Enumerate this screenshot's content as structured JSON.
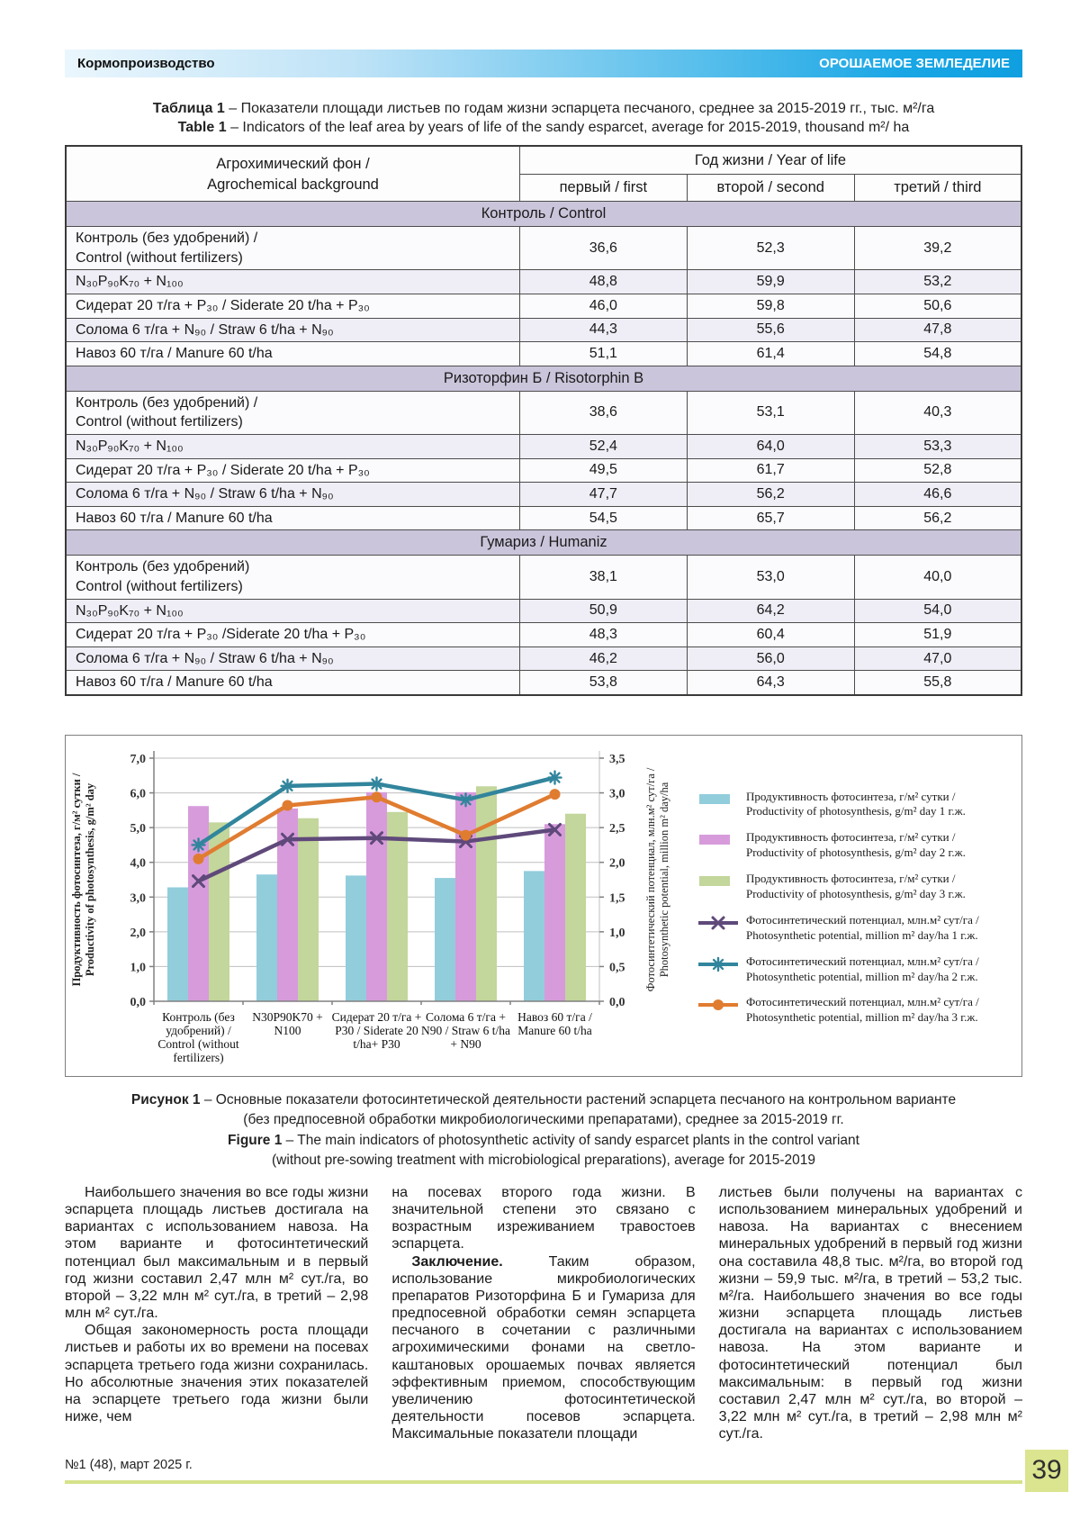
{
  "header": {
    "left": "Кормопроизводство",
    "right": "ОРОШАЕМОЕ ЗЕМЛЕДЕЛИЕ"
  },
  "table_title": {
    "l1_bold": "Таблица 1",
    "l1_rest": " – Показатели площади листьев по годам жизни эспарцета песчаного, среднее за 2015-2019 гг., тыс. м²/га",
    "l2_bold": "Table 1",
    "l2_rest": " – Indicators of the leaf area by years of life of the sandy esparcet, average for 2015-2019, thousand m²/ ha"
  },
  "table": {
    "header": {
      "background": "Агрохимический фон /\nAgrochemical background",
      "year": "Год жизни / Year of life",
      "cols": [
        "первый / first",
        "второй / second",
        "третий / third"
      ]
    },
    "sections": [
      {
        "title": "Контроль / Control",
        "rows": [
          {
            "label": "Контроль (без удобрений) /\nControl (without fertilizers)",
            "values": [
              "36,6",
              "52,3",
              "39,2"
            ]
          },
          {
            "label": "N₃₀P₉₀K₇₀ + N₁₀₀",
            "values": [
              "48,8",
              "59,9",
              "53,2"
            ]
          },
          {
            "label": "Сидерат 20 т/га + P₃₀ / Siderate 20 t/ha + P₃₀",
            "values": [
              "46,0",
              "59,8",
              "50,6"
            ]
          },
          {
            "label": "Солома 6 т/га + N₉₀ / Straw 6 t/ha + N₉₀",
            "values": [
              "44,3",
              "55,6",
              "47,8"
            ]
          },
          {
            "label": "Навоз 60 т/га / Manure 60 t/ha",
            "values": [
              "51,1",
              "61,4",
              "54,8"
            ]
          }
        ]
      },
      {
        "title": "Ризоторфин Б / Risotorphin B",
        "rows": [
          {
            "label": "Контроль (без удобрений) /\nControl (without fertilizers)",
            "values": [
              "38,6",
              "53,1",
              "40,3"
            ]
          },
          {
            "label": "N₃₀P₉₀K₇₀ + N₁₀₀",
            "values": [
              "52,4",
              "64,0",
              "53,3"
            ]
          },
          {
            "label": "Сидерат 20 т/га + P₃₀ / Siderate 20 t/ha + P₃₀",
            "values": [
              "49,5",
              "61,7",
              "52,8"
            ]
          },
          {
            "label": "Солома 6 т/га + N₉₀ / Straw 6 t/ha + N₉₀",
            "values": [
              "47,7",
              "56,2",
              "46,6"
            ]
          },
          {
            "label": "Навоз 60 т/га / Manure 60 t/ha",
            "values": [
              "54,5",
              "65,7",
              "56,2"
            ]
          }
        ]
      },
      {
        "title": "Гумариз / Humaniz",
        "rows": [
          {
            "label": "Контроль (без удобрений)\nControl (without fertilizers)",
            "values": [
              "38,1",
              "53,0",
              "40,0"
            ]
          },
          {
            "label": "N₃₀P₉₀K₇₀ + N₁₀₀",
            "values": [
              "50,9",
              "64,2",
              "54,0"
            ]
          },
          {
            "label": "Сидерат 20 т/га + P₃₀ /Siderate 20 t/ha + P₃₀",
            "values": [
              "48,3",
              "60,4",
              "51,9"
            ]
          },
          {
            "label": "Солома 6 т/га + N₉₀ / Straw 6 t/ha + N₉₀",
            "values": [
              "46,2",
              "56,0",
              "47,0"
            ]
          },
          {
            "label": "Навоз 60 т/га / Manure 60 t/ha",
            "values": [
              "53,8",
              "64,3",
              "55,8"
            ]
          }
        ]
      }
    ]
  },
  "chart_data": {
    "type": "combo-bar-line",
    "title": "",
    "categories": [
      [
        "Контроль (без",
        "удобрений) /",
        "Control (without",
        "fertilizers)"
      ],
      [
        "N30P90K70 +",
        "N100"
      ],
      [
        "Сидерат 20 т/га +",
        "P30  / Siderate 20",
        "t/ha+ P30"
      ],
      [
        "Солома 6 т/га +",
        "N90 / Straw 6 t/ha",
        "+ N90"
      ],
      [
        "Навоз 60 т/га /",
        "Manure 60 t/ha"
      ]
    ],
    "left_axis": {
      "label_lines": [
        "Продуктивность фотосинтеза, г/м² сутки /",
        "Productivity of photosynthesis, g/m² day"
      ],
      "min": 0,
      "max": 7,
      "step": 1
    },
    "right_axis": {
      "label_lines": [
        "Фотосинтетический потенциал, млн.м² сут/га /",
        "Photosynthetic potential, million m² day/ha"
      ],
      "min": 0,
      "max": 3.5,
      "step": 0.5
    },
    "bar_series": [
      {
        "name": "Продуктивность фотосинтеза 1 г.ж.",
        "color": "#92CDDC",
        "axis": "left",
        "values": [
          3.28,
          3.65,
          3.62,
          3.55,
          3.75
        ]
      },
      {
        "name": "Продуктивность фотосинтеза 2 г.ж.",
        "color": "#D79BDB",
        "axis": "left",
        "values": [
          5.62,
          5.55,
          6.02,
          6.02,
          5.1
        ]
      },
      {
        "name": "Продуктивность фотосинтеза 3 г.ж.",
        "color": "#C3D69B",
        "axis": "left",
        "values": [
          5.15,
          5.27,
          5.45,
          6.19,
          5.4
        ]
      }
    ],
    "line_series": [
      {
        "name": "Фотосинтетический потенциал 1 г.ж.",
        "color": "#5F497A",
        "marker": "x",
        "axis": "right",
        "values": [
          1.73,
          2.33,
          2.35,
          2.3,
          2.47
        ]
      },
      {
        "name": "Фотосинтетический потенциал 2 г.ж.",
        "color": "#31859C",
        "marker": "star",
        "axis": "right",
        "values": [
          2.25,
          3.1,
          3.13,
          2.9,
          3.22
        ]
      },
      {
        "name": "Фотосинтетический потенциал 3 г.ж.",
        "color": "#E07C30",
        "marker": "circle",
        "axis": "right",
        "values": [
          2.05,
          2.82,
          2.94,
          2.39,
          2.98
        ]
      }
    ],
    "legend": [
      {
        "swatch": "bar",
        "color": "#92CDDC",
        "line1": "Продуктивность фотосинтеза, г/м²  сутки /",
        "line2": "Productivity of photosynthesis, g/m²  day 1 г.ж."
      },
      {
        "swatch": "bar",
        "color": "#D79BDB",
        "line1": "Продуктивность фотосинтеза, г/м²  сутки /",
        "line2": "Productivity of photosynthesis, g/m²  day 2 г.ж."
      },
      {
        "swatch": "bar",
        "color": "#C3D69B",
        "line1": "Продуктивность фотосинтеза, г/м²  сутки /",
        "line2": "Productivity of photosynthesis, g/m²  day 3 г.ж."
      },
      {
        "swatch": "line-x",
        "color": "#5F497A",
        "line1": "Фотосинтетический потенциал, млн.м²  сут/га /",
        "line2": "Photosynthetic potential, million m²  day/ha 1 г.ж."
      },
      {
        "swatch": "line-star",
        "color": "#31859C",
        "line1": "Фотосинтетический потенциал, млн.м²  сут/га /",
        "line2": "Photosynthetic potential, million m²  day/ha 2 г.ж."
      },
      {
        "swatch": "line-circle",
        "color": "#E07C30",
        "line1": "Фотосинтетический потенциал, млн.м²  сут/га /",
        "line2": "Photosynthetic potential, million m²  day/ha 3 г.ж."
      }
    ]
  },
  "figure_caption": {
    "l1_bold": "Рисунок 1",
    "l1_rest": " – Основные показатели фотосинтетической деятельности растений эспарцета песчаного на контрольном варианте",
    "l2": "(без предпосевной обработки микробиологическими препаратами), среднее за 2015-2019 гг.",
    "l3_bold": "Figure 1",
    "l3_rest": " – The main indicators of photosynthetic activity of sandy esparcet plants in the control variant",
    "l4": "(without pre-sowing treatment with microbiological preparations), average for 2015-2019"
  },
  "columns": {
    "col1": {
      "p1": "Наибольшего значения во все годы жизни эспарцета площадь листьев достигала на вариантах с использованием навоза. На этом варианте и фотосинтетический потенциал был максимальным и в первый год жизни составил 2,47 млн м² сут./га, во второй – 3,22 млн м² сут./га, в третий – 2,98 млн м² сут./га.",
      "p2": "Общая закономерность роста площади листьев и работы их во времени на посевах эспарцета третьего года жизни сохранилась. Но абсолютные значения этих показателей на эспарцете третьего года жизни были ниже, чем"
    },
    "col2": {
      "p1": "на посевах второго года жизни. В значительной степени это связано с возрастным изреживанием травостоев эспарцета.",
      "p2_lead": "Заключение.",
      "p2": " Таким образом, использование микробиологических препаратов Ризоторфина Б и Гумариза для предпосевной обработки семян эспарцета песчаного в сочетании с различными агрохимическими фонами на светло-каштановых орошаемых почвах является эффективным приемом, способствующим увеличению фотосинтетической деятельности посевов эспарцета. Максимальные показатели площади"
    },
    "col3": {
      "p1": "листьев были получены на вариантах с использованием минеральных удобрений и навоза. На вариантах с внесением минеральных удобрений в первый год жизни она составила 48,8 тыс. м²/га, во второй год жизни – 59,9 тыс. м²/га, в третий – 53,2 тыс. м²/га. Наибольшего значения во все годы жизни эспарцета площадь листьев достигала на вариантах с использованием навоза. На этом варианте и фотосинтетический потенциал был максимальным: в первый год жизни составил 2,47 млн м² сут./га, во второй – 3,22 млн м² сут./га, в третий – 2,98 млн м² сут./га."
    }
  },
  "footer": {
    "issue": "№1 (48), март 2025 г.",
    "page_number": "39"
  },
  "palette": {
    "header_gradient_start": "#eaf6fd",
    "header_gradient_end": "#0f9fe0",
    "section_row_bg": "#cbc5db",
    "shaded_row_bg": "#efedf5",
    "footer_accent": "#d6e28a",
    "page_number_bg": "#dbe48e"
  }
}
